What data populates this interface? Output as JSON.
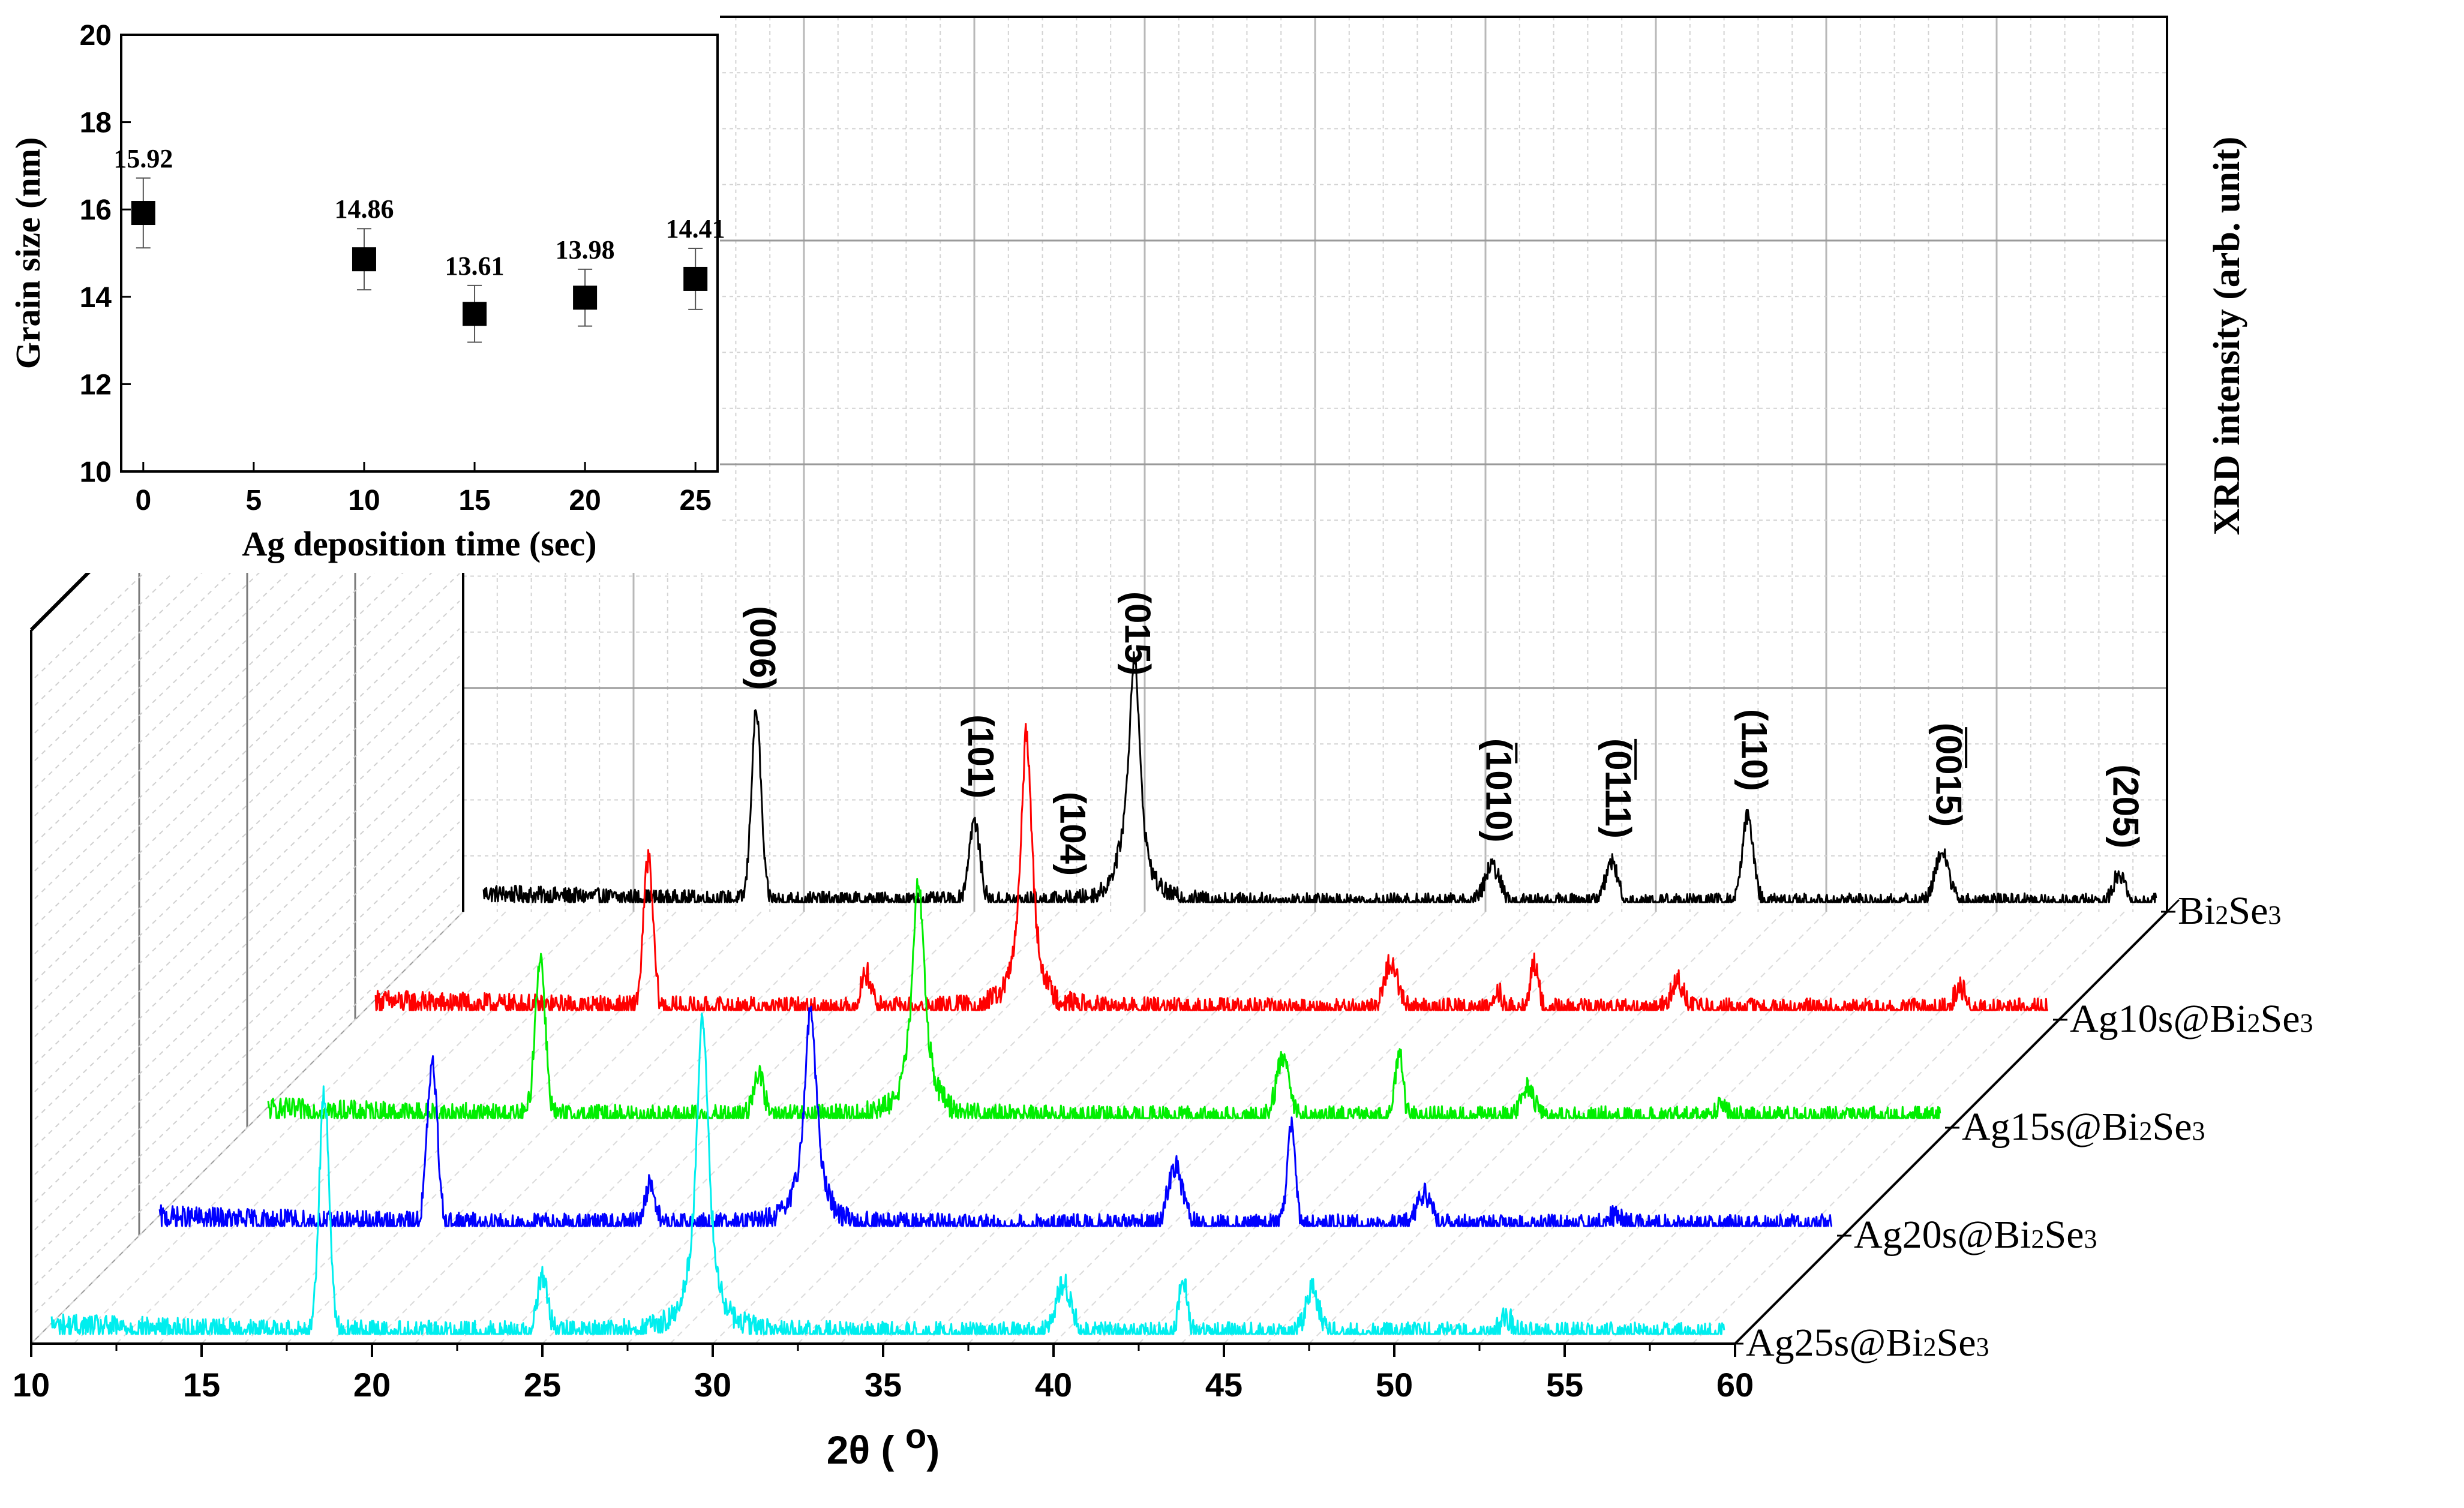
{
  "chart_data": [
    {
      "type": "line",
      "variant": "3d-waterfall-xrd",
      "xlabel": "2θ ( o)",
      "ylabel": "XRD intensity (arb. unit)",
      "xlim": [
        10,
        60
      ],
      "x_ticks": [
        10,
        15,
        20,
        25,
        30,
        35,
        40,
        45,
        50,
        55,
        60
      ],
      "x_tick_labels": [
        "10",
        "15",
        "20",
        "25",
        "30",
        "35",
        "40",
        "45",
        "50",
        "55",
        "60"
      ],
      "series": [
        {
          "name": "Bi2Se3",
          "label_parts": [
            "Bi",
            "2",
            "Se",
            "3"
          ],
          "color": "#000000",
          "noise": 0.045,
          "peaks": [
            {
              "x": 18.6,
              "h": 0.95,
              "w": 0.14
            },
            {
              "x": 25.0,
              "h": 0.4,
              "w": 0.16
            },
            {
              "x": 29.4,
              "h": 0.08,
              "w": 0.3
            },
            {
              "x": 29.7,
              "h": 1.2,
              "w": 0.2,
              "lorentz": true
            },
            {
              "x": 40.2,
              "h": 0.18,
              "w": 0.22
            },
            {
              "x": 43.7,
              "h": 0.2,
              "w": 0.18
            },
            {
              "x": 47.7,
              "h": 0.44,
              "w": 0.16
            },
            {
              "x": 53.4,
              "h": 0.26,
              "w": 0.2
            },
            {
              "x": 58.6,
              "h": 0.15,
              "w": 0.16
            }
          ],
          "annotations": [
            {
              "text": "(006)",
              "x": 18.6
            },
            {
              "text": "(101)",
              "x": 25.0
            },
            {
              "text": "(104)",
              "x": 27.7
            },
            {
              "text": "(015)",
              "x": 29.6
            },
            {
              "text": "(1010)",
              "x": 40.2,
              "bar_chars": [
                1,
                2
              ]
            },
            {
              "text": "(0111)",
              "x": 43.7,
              "bar_chars": [
                1,
                3
              ]
            },
            {
              "text": "(110)",
              "x": 47.7
            },
            {
              "text": "(0015)",
              "x": 53.4,
              "bar_chars": [
                1,
                3
              ]
            },
            {
              "text": "(205)",
              "x": 58.6
            }
          ]
        },
        {
          "name": "Ag10s@Bi2Se3",
          "label_parts": [
            "Ag10s@Bi",
            "2",
            "Se",
            "3"
          ],
          "color": "#ff0000",
          "noise": 0.06,
          "peaks": [
            {
              "x": 18.6,
              "h": 0.75,
              "w": 0.14
            },
            {
              "x": 25.0,
              "h": 0.18,
              "w": 0.16
            },
            {
              "x": 29.7,
              "h": 1.4,
              "w": 0.2,
              "lorentz": true
            },
            {
              "x": 40.4,
              "h": 0.24,
              "w": 0.2
            },
            {
              "x": 43.5,
              "h": 0.1,
              "w": 0.15
            },
            {
              "x": 44.6,
              "h": 0.23,
              "w": 0.12
            },
            {
              "x": 48.8,
              "h": 0.15,
              "w": 0.2
            },
            {
              "x": 57.1,
              "h": 0.12,
              "w": 0.16
            }
          ]
        },
        {
          "name": "Ag15s@Bi2Se3",
          "label_parts": [
            "Ag15s@Bi",
            "2",
            "Se",
            "3"
          ],
          "color": "#00ee00",
          "noise": 0.06,
          "peaks": [
            {
              "x": 18.6,
              "h": 0.8,
              "w": 0.15
            },
            {
              "x": 25.0,
              "h": 0.22,
              "w": 0.16
            },
            {
              "x": 29.7,
              "h": 1.2,
              "w": 0.22,
              "lorentz": true
            },
            {
              "x": 40.4,
              "h": 0.3,
              "w": 0.2
            },
            {
              "x": 43.8,
              "h": 0.33,
              "w": 0.12
            },
            {
              "x": 47.6,
              "h": 0.15,
              "w": 0.2
            },
            {
              "x": 53.3,
              "h": 0.07,
              "w": 0.2
            }
          ]
        },
        {
          "name": "Ag20s@Bi2Se3",
          "label_parts": [
            "Ag20s@Bi",
            "2",
            "Se",
            "3"
          ],
          "color": "#0000ff",
          "noise": 0.06,
          "peaks": [
            {
              "x": 18.6,
              "h": 0.8,
              "w": 0.15
            },
            {
              "x": 25.0,
              "h": 0.2,
              "w": 0.16
            },
            {
              "x": 29.7,
              "h": 1.1,
              "w": 0.22,
              "lorentz": true
            },
            {
              "x": 40.4,
              "h": 0.3,
              "w": 0.22
            },
            {
              "x": 43.8,
              "h": 0.5,
              "w": 0.12
            },
            {
              "x": 47.7,
              "h": 0.17,
              "w": 0.22
            },
            {
              "x": 53.3,
              "h": 0.06,
              "w": 0.2
            }
          ]
        },
        {
          "name": "Ag25s@Bi2Se3",
          "label_parts": [
            "Ag25s@Bi",
            "2",
            "Se",
            "3"
          ],
          "color": "#00eeee",
          "noise": 0.06,
          "peaks": [
            {
              "x": 18.6,
              "h": 1.2,
              "w": 0.15
            },
            {
              "x": 25.0,
              "h": 0.28,
              "w": 0.16
            },
            {
              "x": 29.7,
              "h": 1.6,
              "w": 0.22,
              "lorentz": true
            },
            {
              "x": 40.3,
              "h": 0.25,
              "w": 0.22
            },
            {
              "x": 43.8,
              "h": 0.28,
              "w": 0.12
            },
            {
              "x": 47.6,
              "h": 0.22,
              "w": 0.2
            },
            {
              "x": 53.3,
              "h": 0.08,
              "w": 0.2
            }
          ]
        }
      ]
    },
    {
      "type": "scatter",
      "title": "",
      "xlabel": "Ag deposition time (sec)",
      "ylabel": "Grain size (nm)",
      "xlim": [
        -1,
        26
      ],
      "ylim": [
        10,
        20
      ],
      "x_ticks": [
        0,
        5,
        10,
        15,
        20,
        25
      ],
      "y_ticks": [
        10,
        12,
        14,
        16,
        18,
        20
      ],
      "points": [
        {
          "x": 0,
          "y": 15.92,
          "label": "15.92",
          "err": 0.8
        },
        {
          "x": 10,
          "y": 14.86,
          "label": "14.86",
          "err": 0.7
        },
        {
          "x": 15,
          "y": 13.61,
          "label": "13.61",
          "err": 0.65
        },
        {
          "x": 20,
          "y": 13.98,
          "label": "13.98",
          "err": 0.65
        },
        {
          "x": 25,
          "y": 14.41,
          "label": "14.41",
          "err": 0.7
        }
      ]
    }
  ]
}
